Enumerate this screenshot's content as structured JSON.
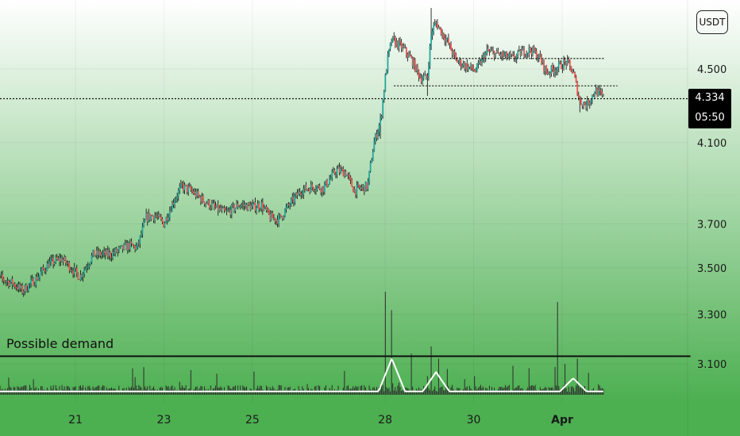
{
  "currency_button": "USDT",
  "last_price": {
    "price": "4.334",
    "countdown": "05:50"
  },
  "annotation": {
    "text": "Possible demand",
    "level": 3.13
  },
  "colors": {
    "background_top": "#ffffff",
    "background_bottom": "#4caf50",
    "footer": "#4caf50",
    "candle_up": "#26a69a",
    "candle_down": "#ef5350",
    "wick": "#1b1b1b",
    "volume_bar": "#2b2b2b",
    "volume_ma": "#ffffff",
    "level_line": "#111111",
    "tag_bg": "#000000"
  },
  "chart_data": {
    "type": "candlestick",
    "x_axis": {
      "ticks": [
        {
          "label": "21",
          "t": 21
        },
        {
          "label": "23",
          "t": 23
        },
        {
          "label": "25",
          "t": 25
        },
        {
          "label": "28",
          "t": 28
        },
        {
          "label": "30",
          "t": 30
        },
        {
          "label": "Apr",
          "t": 32
        }
      ],
      "range": [
        19.1,
        34.9
      ]
    },
    "y_axis": {
      "ticks": [
        "4.500",
        "4.100",
        "3.700",
        "3.500",
        "3.300",
        "3.100"
      ],
      "tick_values": [
        4.5,
        4.1,
        3.7,
        3.5,
        3.3,
        3.1
      ],
      "scale": "log",
      "range": [
        3.05,
        4.86
      ],
      "side": "right"
    },
    "price_path": [
      [
        19.1,
        3.47
      ],
      [
        19.6,
        3.43
      ],
      [
        19.8,
        3.4
      ],
      [
        20.1,
        3.45
      ],
      [
        20.4,
        3.52
      ],
      [
        20.7,
        3.54
      ],
      [
        20.9,
        3.5
      ],
      [
        21.1,
        3.46
      ],
      [
        21.4,
        3.56
      ],
      [
        21.8,
        3.56
      ],
      [
        22.2,
        3.6
      ],
      [
        22.4,
        3.59
      ],
      [
        22.6,
        3.73
      ],
      [
        22.8,
        3.74
      ],
      [
        23.0,
        3.7
      ],
      [
        23.2,
        3.8
      ],
      [
        23.4,
        3.88
      ],
      [
        23.6,
        3.86
      ],
      [
        23.9,
        3.81
      ],
      [
        24.2,
        3.77
      ],
      [
        24.4,
        3.75
      ],
      [
        24.7,
        3.79
      ],
      [
        25.0,
        3.78
      ],
      [
        25.2,
        3.79
      ],
      [
        25.4,
        3.73
      ],
      [
        25.6,
        3.72
      ],
      [
        25.8,
        3.78
      ],
      [
        26.1,
        3.86
      ],
      [
        26.4,
        3.88
      ],
      [
        26.6,
        3.87
      ],
      [
        26.9,
        3.96
      ],
      [
        27.1,
        3.95
      ],
      [
        27.3,
        3.86
      ],
      [
        27.6,
        3.88
      ],
      [
        27.75,
        4.1
      ],
      [
        27.9,
        4.22
      ],
      [
        28.05,
        4.55
      ],
      [
        28.15,
        4.67
      ],
      [
        28.4,
        4.62
      ],
      [
        28.6,
        4.55
      ],
      [
        28.8,
        4.45
      ],
      [
        28.95,
        4.45
      ],
      [
        29.05,
        4.72
      ],
      [
        29.15,
        4.77
      ],
      [
        29.4,
        4.66
      ],
      [
        29.6,
        4.55
      ],
      [
        29.8,
        4.52
      ],
      [
        30.05,
        4.49
      ],
      [
        30.3,
        4.6
      ],
      [
        30.6,
        4.58
      ],
      [
        30.9,
        4.56
      ],
      [
        31.1,
        4.6
      ],
      [
        31.3,
        4.61
      ],
      [
        31.5,
        4.56
      ],
      [
        31.65,
        4.48
      ],
      [
        31.9,
        4.51
      ],
      [
        32.1,
        4.54
      ],
      [
        32.25,
        4.48
      ],
      [
        32.4,
        4.32
      ],
      [
        32.55,
        4.3
      ],
      [
        32.75,
        4.38
      ],
      [
        32.95,
        4.334
      ]
    ],
    "spikes": [
      {
        "t": 27.9,
        "low": 4.12
      },
      {
        "t": 28.95,
        "low": 4.35
      },
      {
        "t": 29.05,
        "high": 4.86
      },
      {
        "t": 32.4,
        "low": 4.26
      }
    ],
    "horizontal_levels": [
      {
        "price": 4.56,
        "t_start": 29.1,
        "t_end": 32.95,
        "style": "dotted"
      },
      {
        "price": 4.405,
        "t_start": 28.2,
        "t_end": 33.25,
        "style": "dotted"
      },
      {
        "price": 4.334,
        "t_start": 19.1,
        "t_end": 34.9,
        "style": "dotted"
      },
      {
        "price": 3.13,
        "t_start": 19.1,
        "t_end": 34.9,
        "style": "solid"
      }
    ],
    "volume": {
      "baseline": 0.06,
      "spikes": [
        {
          "t": 28.0,
          "v": 1.0
        },
        {
          "t": 28.15,
          "v": 0.82
        },
        {
          "t": 28.6,
          "v": 0.4
        },
        {
          "t": 29.05,
          "v": 0.47
        },
        {
          "t": 29.2,
          "v": 0.35
        },
        {
          "t": 29.4,
          "v": 0.25
        },
        {
          "t": 31.9,
          "v": 0.9
        },
        {
          "t": 32.05,
          "v": 0.3
        },
        {
          "t": 32.35,
          "v": 0.35
        }
      ],
      "ma_peaks": [
        {
          "t": 28.15,
          "v": 0.35
        },
        {
          "t": 29.15,
          "v": 0.22
        },
        {
          "t": 32.25,
          "v": 0.16
        }
      ]
    }
  }
}
